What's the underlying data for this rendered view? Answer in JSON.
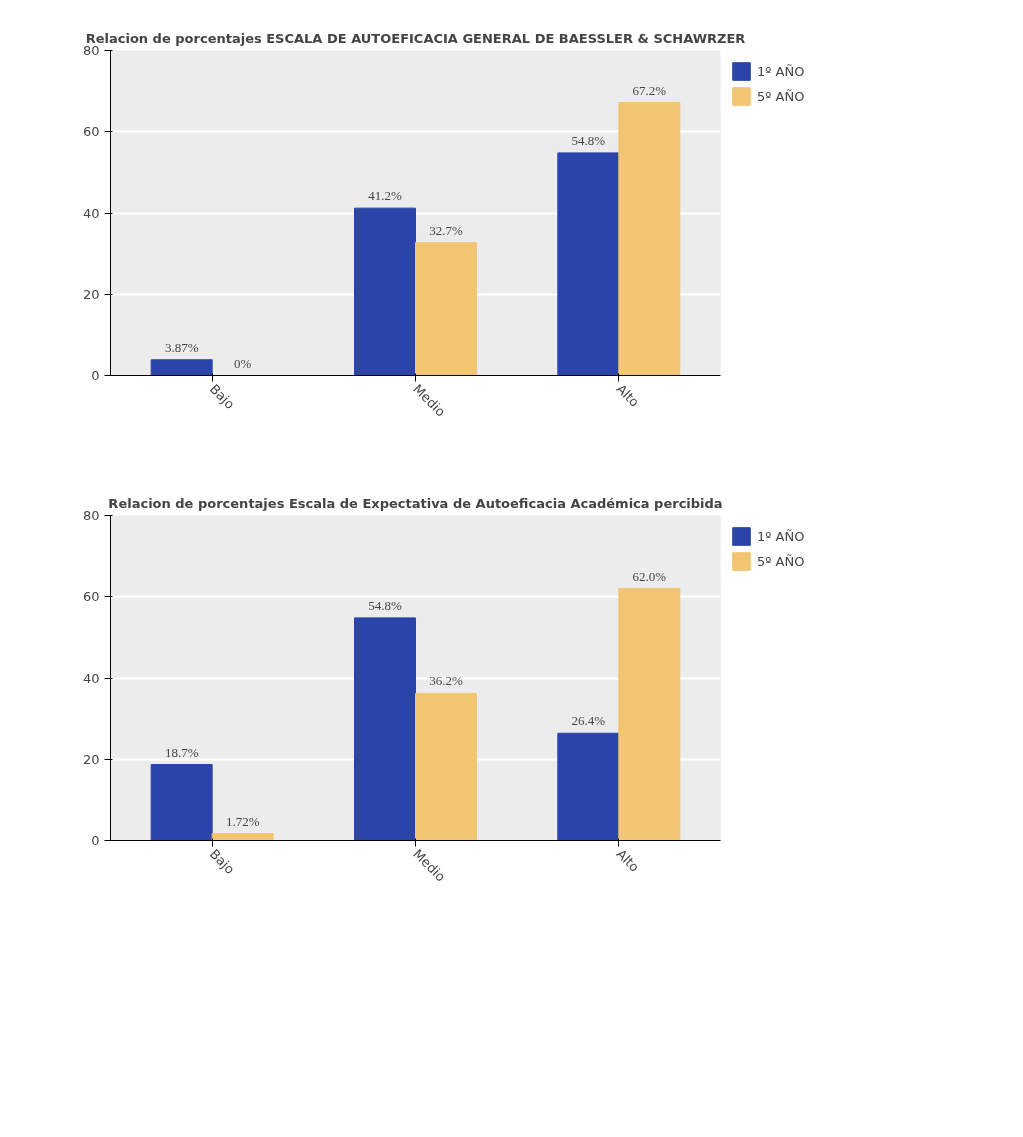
{
  "chart_data": [
    {
      "type": "bar",
      "title": "Relacion de porcentajes ESCALA DE AUTOEFICACIA GENERAL DE BAESSLER & SCHAWRZER",
      "categories": [
        "Bajo",
        "Medio",
        "Alto"
      ],
      "ylim": [
        0,
        80
      ],
      "yticks": [
        0,
        20,
        40,
        60,
        80
      ],
      "grid": "y",
      "legend": "right",
      "series": [
        {
          "name": "1º AÑO",
          "color": "#2a44aa",
          "values": [
            3.87,
            41.2,
            54.8
          ],
          "value_labels": [
            "3.87%",
            "41.2%",
            "54.8%"
          ]
        },
        {
          "name": "5º AÑO",
          "color": "#f2c572",
          "values": [
            0,
            32.7,
            67.2
          ],
          "value_labels": [
            "0%",
            "32.7%",
            "67.2%"
          ]
        }
      ]
    },
    {
      "type": "bar",
      "title": "Relacion de porcentajes Escala de Expectativa de Autoeficacia Académica percibida",
      "categories": [
        "Bajo",
        "Medio",
        "Alto"
      ],
      "ylim": [
        0,
        80
      ],
      "yticks": [
        0,
        20,
        40,
        60,
        80
      ],
      "grid": "y",
      "legend": "right",
      "series": [
        {
          "name": "1º AÑO",
          "color": "#2a44aa",
          "values": [
            18.7,
            54.8,
            26.4
          ],
          "value_labels": [
            "18.7%",
            "54.8%",
            "26.4%"
          ]
        },
        {
          "name": "5º AÑO",
          "color": "#f2c572",
          "values": [
            1.72,
            36.2,
            62.0
          ],
          "value_labels": [
            "1.72%",
            "36.2%",
            "62.0%"
          ]
        }
      ]
    }
  ]
}
